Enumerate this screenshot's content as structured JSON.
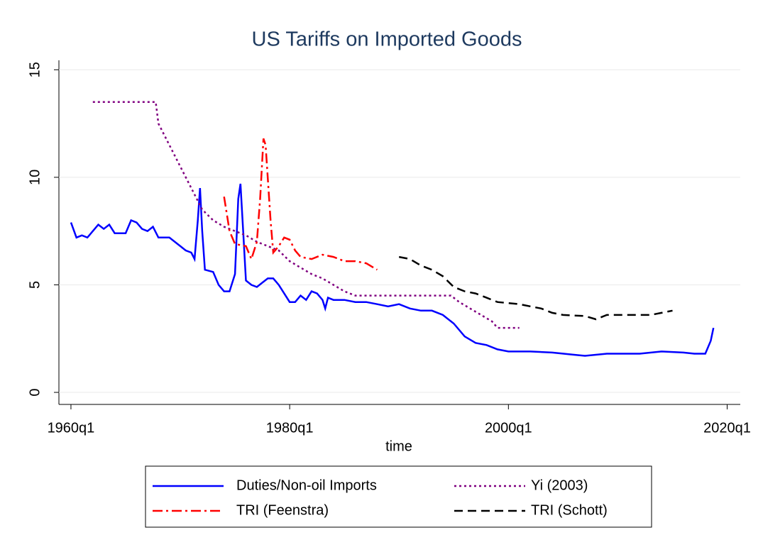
{
  "chart_data": {
    "type": "line",
    "title": "US Tariffs on Imported Goods",
    "x_label": "time",
    "xlim": [
      1958.9,
      2021.2
    ],
    "xticks": [
      {
        "value": 1960,
        "label": "1960q1"
      },
      {
        "value": 1980,
        "label": "1980q1"
      },
      {
        "value": 2000,
        "label": "2000q1"
      },
      {
        "value": 2020,
        "label": "2020q1"
      }
    ],
    "ylim": [
      -0.56,
      15.44
    ],
    "yticks": [
      0,
      5,
      10,
      15
    ],
    "grid": true,
    "series": [
      {
        "name": "Duties/Non-oil Imports",
        "color": "#0000ff",
        "dash": "solid",
        "x": [
          1960,
          1960.5,
          1961,
          1961.5,
          1962,
          1962.5,
          1963,
          1963.5,
          1964,
          1965,
          1965.5,
          1966,
          1966.5,
          1967,
          1967.5,
          1968,
          1969,
          1970,
          1970.5,
          1971,
          1971.3,
          1971.6,
          1971.8,
          1972,
          1972.25,
          1973,
          1973.5,
          1974,
          1974.5,
          1975,
          1975.3,
          1975.5,
          1975.75,
          1976,
          1976.5,
          1977,
          1977.5,
          1978,
          1978.5,
          1979,
          1979.5,
          1980,
          1980.5,
          1981,
          1981.5,
          1982,
          1982.5,
          1983,
          1983.25,
          1983.5,
          1984,
          1985,
          1986,
          1987,
          1988,
          1989,
          1990,
          1991,
          1992,
          1993,
          1994,
          1995,
          1996,
          1997,
          1998,
          1999,
          2000,
          2002,
          2004,
          2006,
          2007,
          2009,
          2010,
          2012,
          2014,
          2016,
          2017,
          2018,
          2018.5,
          2018.75
        ],
        "values": [
          7.9,
          7.2,
          7.3,
          7.2,
          7.5,
          7.8,
          7.6,
          7.8,
          7.4,
          7.4,
          8.0,
          7.9,
          7.6,
          7.5,
          7.7,
          7.2,
          7.2,
          6.8,
          6.6,
          6.5,
          6.2,
          8.0,
          9.5,
          7.5,
          5.7,
          5.6,
          5.0,
          4.7,
          4.7,
          5.5,
          9.0,
          9.7,
          7.5,
          5.2,
          5.0,
          4.9,
          5.1,
          5.3,
          5.3,
          5.0,
          4.6,
          4.2,
          4.2,
          4.5,
          4.3,
          4.7,
          4.6,
          4.3,
          3.9,
          4.4,
          4.3,
          4.3,
          4.2,
          4.2,
          4.1,
          4.0,
          4.1,
          3.9,
          3.8,
          3.8,
          3.6,
          3.2,
          2.6,
          2.3,
          2.2,
          2.0,
          1.9,
          1.9,
          1.85,
          1.75,
          1.7,
          1.8,
          1.8,
          1.8,
          1.9,
          1.85,
          1.8,
          1.8,
          2.4,
          3.0
        ]
      },
      {
        "name": "Yi (2003)",
        "color": "#800080",
        "dash": "dot",
        "x": [
          1962,
          1967.75,
          1968,
          1969,
          1970,
          1971,
          1972,
          1973,
          1974,
          1975,
          1976,
          1977,
          1978,
          1979,
          1980,
          1981,
          1982,
          1983,
          1984,
          1985,
          1986,
          1994.75,
          1995.5,
          1996.5,
          1997.5,
          1998.5,
          1999,
          2001
        ],
        "values": [
          13.5,
          13.5,
          12.5,
          11.5,
          10.5,
          9.5,
          8.5,
          8.0,
          7.7,
          7.5,
          7.3,
          7.0,
          6.8,
          6.6,
          6.1,
          5.8,
          5.5,
          5.3,
          5.0,
          4.7,
          4.5,
          4.5,
          4.2,
          3.9,
          3.6,
          3.3,
          3.0,
          3.0
        ]
      },
      {
        "name": "TRI (Feenstra)",
        "color": "#ff0000",
        "dash": "dashdot",
        "x": [
          1974,
          1974.5,
          1975,
          1976,
          1976.5,
          1977,
          1977.3,
          1977.6,
          1977.8,
          1978.25,
          1978.5,
          1979,
          1979.5,
          1980,
          1980.5,
          1981,
          1982,
          1983,
          1984,
          1985,
          1986,
          1987,
          1988
        ],
        "values": [
          9.1,
          7.5,
          6.9,
          6.8,
          6.2,
          7.0,
          9.0,
          11.8,
          11.5,
          8.0,
          6.5,
          6.8,
          7.2,
          7.1,
          6.6,
          6.3,
          6.2,
          6.4,
          6.3,
          6.1,
          6.1,
          6.0,
          5.7
        ]
      },
      {
        "name": "TRI (Schott)",
        "color": "#000000",
        "dash": "dash",
        "x": [
          1990,
          1991,
          1992,
          1993,
          1994,
          1995,
          1996,
          1997,
          1998,
          1999,
          2000,
          2001,
          2002,
          2003,
          2004,
          2005,
          2007,
          2008,
          2009,
          2011,
          2013,
          2014,
          2015
        ],
        "values": [
          6.3,
          6.2,
          5.9,
          5.7,
          5.4,
          4.9,
          4.7,
          4.6,
          4.4,
          4.2,
          4.15,
          4.1,
          4.0,
          3.9,
          3.7,
          3.6,
          3.55,
          3.4,
          3.6,
          3.6,
          3.6,
          3.7,
          3.8
        ]
      }
    ]
  }
}
